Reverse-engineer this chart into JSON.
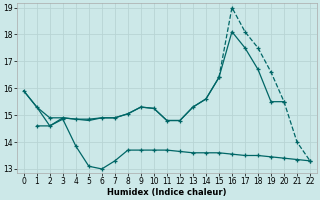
{
  "xlabel": "Humidex (Indice chaleur)",
  "bg_color": "#cce8e8",
  "grid_color": "#b8d4d4",
  "line_color": "#006666",
  "ylim": [
    13,
    19
  ],
  "xlim": [
    0,
    22
  ],
  "yticks": [
    13,
    14,
    15,
    16,
    17,
    18,
    19
  ],
  "xticks": [
    0,
    1,
    2,
    3,
    4,
    5,
    6,
    7,
    8,
    9,
    10,
    11,
    12,
    13,
    14,
    15,
    16,
    17,
    18,
    19,
    20,
    21,
    22
  ],
  "line_dashed_x": [
    15,
    16,
    17,
    18,
    19,
    20,
    21,
    22
  ],
  "line_dashed_y": [
    16.4,
    19.0,
    18.1,
    17.5,
    16.6,
    15.5,
    14.0,
    13.3
  ],
  "line_upper_x": [
    0,
    1,
    2,
    3,
    4,
    5,
    6,
    7,
    8,
    9,
    10,
    11,
    12,
    13,
    14,
    15,
    16,
    17,
    18,
    19,
    20,
    21,
    22
  ],
  "line_upper_y": [
    15.9,
    15.3,
    14.9,
    14.9,
    14.85,
    14.85,
    14.9,
    14.9,
    15.05,
    15.3,
    15.25,
    14.8,
    14.8,
    15.3,
    15.6,
    16.4,
    18.1,
    17.5,
    16.7,
    15.5,
    15.5,
    null,
    null
  ],
  "line_mid_x": [
    0,
    1,
    2,
    3,
    4,
    5,
    6,
    7,
    8,
    9,
    10,
    11,
    12,
    13,
    14,
    15,
    16,
    17,
    18,
    19,
    20,
    21,
    22
  ],
  "line_mid_y": [
    15.9,
    15.3,
    14.6,
    14.9,
    14.85,
    14.8,
    14.9,
    14.9,
    15.05,
    15.3,
    15.25,
    14.8,
    14.8,
    15.3,
    15.6,
    16.4,
    null,
    null,
    null,
    null,
    null,
    null,
    null
  ],
  "line_low_x": [
    1,
    2,
    3,
    4,
    5,
    6,
    7,
    8,
    9,
    10,
    11,
    12,
    13,
    14,
    15,
    16,
    17,
    18,
    19,
    20,
    21,
    22
  ],
  "line_low_y": [
    14.6,
    14.6,
    14.85,
    13.85,
    13.1,
    13.0,
    13.3,
    13.7,
    13.7,
    13.7,
    13.7,
    13.65,
    13.6,
    13.6,
    13.6,
    13.55,
    13.5,
    13.5,
    13.45,
    13.4,
    13.35,
    13.3
  ]
}
